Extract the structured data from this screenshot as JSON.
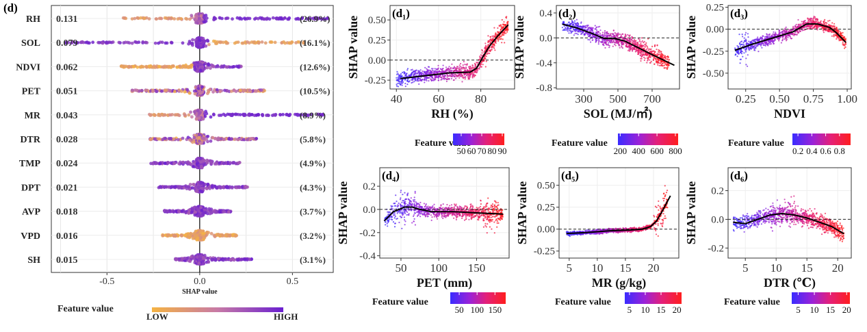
{
  "chart_data": [
    {
      "type": "scatter",
      "subtype": "shap-summary-beeswarm",
      "panel_label": "(d)",
      "xlabel": "SHAP value",
      "xlim": [
        -0.8,
        0.72
      ],
      "xticks": [
        -0.5,
        0.0,
        0.5
      ],
      "xtick_labels": [
        "-0.5",
        "0.0",
        "0.5"
      ],
      "features": [
        {
          "name": "RH",
          "mean_abs_shap": "0.131",
          "share": "(26.9%)",
          "min": -0.43,
          "max": 0.7,
          "color": "high-right"
        },
        {
          "name": "SOL",
          "mean_abs_shap": "0.079",
          "share": "(16.1%)",
          "min": -0.73,
          "max": 0.57,
          "color": "low-right"
        },
        {
          "name": "NDVI",
          "mean_abs_shap": "0.062",
          "share": "(12.6%)",
          "min": -0.43,
          "max": 0.23,
          "color": "low-left"
        },
        {
          "name": "PET",
          "mean_abs_shap": "0.051",
          "share": "(10.5%)",
          "min": -0.37,
          "max": 0.35,
          "color": "mixed"
        },
        {
          "name": "MR",
          "mean_abs_shap": "0.043",
          "share": "(8.9%)",
          "min": -0.31,
          "max": 0.67,
          "color": "high-right"
        },
        {
          "name": "DTR",
          "mean_abs_shap": "0.028",
          "share": "(5.8%)",
          "min": -0.27,
          "max": 0.31,
          "color": "mixed"
        },
        {
          "name": "TMP",
          "mean_abs_shap": "0.024",
          "share": "(4.9%)",
          "min": -0.27,
          "max": 0.22,
          "color": "mostly-high"
        },
        {
          "name": "DPT",
          "mean_abs_shap": "0.021",
          "share": "(4.3%)",
          "min": -0.23,
          "max": 0.26,
          "color": "mostly-high"
        },
        {
          "name": "AVP",
          "mean_abs_shap": "0.018",
          "share": "(3.7%)",
          "min": -0.19,
          "max": 0.17,
          "color": "mostly-high"
        },
        {
          "name": "VPD",
          "mean_abs_shap": "0.016",
          "share": "(3.2%)",
          "min": -0.2,
          "max": 0.2,
          "color": "mostly-low"
        },
        {
          "name": "SH",
          "mean_abs_shap": "0.015",
          "share": "(3.1%)",
          "min": -0.14,
          "max": 0.28,
          "color": "mostly-high"
        }
      ],
      "legend": {
        "title": "Feature value",
        "low": "LOW",
        "high": "HIGH",
        "colors": [
          "#f5b342",
          "#c77aa6",
          "#6a1fd0"
        ]
      }
    },
    {
      "type": "scatter",
      "panel_label": "(d₁)",
      "xlabel": "RH (%)",
      "ylabel": "SHAP value",
      "xlim": [
        37,
        96
      ],
      "ylim": [
        -0.36,
        0.68
      ],
      "xticks": [
        40,
        60,
        80
      ],
      "yticks": [
        -0.25,
        0,
        0.25,
        0.5
      ],
      "ytick_labels": [
        "-0.25",
        "0.00",
        "0.25",
        "0.50"
      ],
      "ref_line": 0,
      "trend": [
        [
          42,
          -0.23
        ],
        [
          55,
          -0.19
        ],
        [
          65,
          -0.16
        ],
        [
          75,
          -0.15
        ],
        [
          78,
          -0.1
        ],
        [
          81,
          0.04
        ],
        [
          84,
          0.17
        ],
        [
          88,
          0.3
        ],
        [
          93,
          0.44
        ]
      ],
      "scatter": {
        "xmin": 40,
        "xmax": 93,
        "spread": 0.09,
        "extra": [
          [
            80,
            93,
            0.14
          ]
        ]
      },
      "legend": {
        "title": "Feature value",
        "ticks": [
          "50",
          "60",
          "70",
          "80",
          "90"
        ],
        "domain": [
          42,
          92
        ],
        "tickvals": [
          50,
          60,
          70,
          80,
          90
        ]
      }
    },
    {
      "type": "scatter",
      "panel_label": "(d₂)",
      "xlabel": "SOL (MJ/㎡)",
      "ylabel": "SHAP value",
      "xlim": [
        140,
        860
      ],
      "ylim": [
        -0.82,
        0.52
      ],
      "xticks": [
        300,
        500,
        700
      ],
      "yticks": [
        -0.8,
        -0.4,
        0,
        0.4
      ],
      "ytick_labels": [
        "-0.8",
        "-0.4",
        "0.0",
        "0.4"
      ],
      "ref_line": 0,
      "trend": [
        [
          175,
          0.22
        ],
        [
          260,
          0.16
        ],
        [
          350,
          0.07
        ],
        [
          420,
          -0.01
        ],
        [
          480,
          -0.01
        ],
        [
          540,
          -0.05
        ],
        [
          620,
          -0.16
        ],
        [
          700,
          -0.27
        ],
        [
          830,
          -0.44
        ]
      ],
      "scatter": {
        "xmin": 175,
        "xmax": 800,
        "spread": 0.12,
        "extra": [
          [
            620,
            740,
            0.18
          ]
        ]
      },
      "legend": {
        "title": "Feature value",
        "ticks": [
          "200",
          "400",
          "600",
          "800"
        ],
        "domain": [
          175,
          830
        ],
        "tickvals": [
          200,
          400,
          600,
          800
        ]
      }
    },
    {
      "type": "scatter",
      "panel_label": "(d₃)",
      "xlabel": "NDVI",
      "ylabel": "SHAP value",
      "xlim": [
        0.12,
        1.03
      ],
      "ylim": [
        -0.68,
        0.27
      ],
      "xticks": [
        0.25,
        0.5,
        0.75,
        1.0
      ],
      "xtick_labels": [
        "0.25",
        "0.50",
        "0.75",
        "1.00"
      ],
      "yticks": [
        -0.5,
        -0.25,
        0,
        0.25
      ],
      "ytick_labels": [
        "-0.50",
        "-0.25",
        "0.00",
        "0.25"
      ],
      "ref_line": 0,
      "trend": [
        [
          0.17,
          -0.24
        ],
        [
          0.3,
          -0.17
        ],
        [
          0.45,
          -0.1
        ],
        [
          0.6,
          -0.03
        ],
        [
          0.7,
          0.06
        ],
        [
          0.78,
          0.06
        ],
        [
          0.87,
          0.02
        ],
        [
          0.92,
          -0.04
        ],
        [
          0.99,
          -0.15
        ]
      ],
      "scatter": {
        "xmin": 0.17,
        "xmax": 0.99,
        "spread": 0.07,
        "extra": [
          [
            0.2,
            0.27,
            0.22
          ]
        ]
      },
      "legend": {
        "title": "Feature value",
        "ticks": [
          "0.2",
          "0.4",
          "0.6",
          "0.8"
        ],
        "domain": [
          0.12,
          0.96
        ],
        "tickvals": [
          0.2,
          0.4,
          0.6,
          0.8
        ]
      }
    },
    {
      "type": "scatter",
      "panel_label": "(d₄)",
      "xlabel": "PET (mm)",
      "ylabel": "SHAP value",
      "xlim": [
        22,
        193
      ],
      "ylim": [
        -0.42,
        0.36
      ],
      "xticks": [
        50,
        100,
        150
      ],
      "yticks": [
        -0.4,
        -0.2,
        0,
        0.2
      ],
      "ytick_labels": [
        "-0.4",
        "-0.2",
        "0.0",
        "0.2"
      ],
      "ref_line": 0,
      "trend": [
        [
          28,
          -0.1
        ],
        [
          40,
          -0.02
        ],
        [
          55,
          0.02
        ],
        [
          65,
          0.02
        ],
        [
          75,
          0.0
        ],
        [
          90,
          -0.02
        ],
        [
          120,
          -0.02
        ],
        [
          150,
          -0.03
        ],
        [
          185,
          -0.04
        ]
      ],
      "scatter": {
        "xmin": 28,
        "xmax": 185,
        "spread": 0.06,
        "extra": [
          [
            40,
            70,
            0.16
          ],
          [
            155,
            180,
            0.13
          ]
        ]
      },
      "legend": {
        "title": "Feature value",
        "ticks": [
          "50",
          "100",
          "150"
        ],
        "domain": [
          25,
          180
        ],
        "tickvals": [
          50,
          100,
          150
        ]
      }
    },
    {
      "type": "scatter",
      "panel_label": "(d₅)",
      "xlabel": "MR (g/kg)",
      "ylabel": "SHAP value",
      "xlim": [
        3.2,
        24.5
      ],
      "ylim": [
        -0.33,
        0.7
      ],
      "xticks": [
        5,
        10,
        15,
        20
      ],
      "yticks": [
        -0.25,
        0,
        0.25,
        0.5
      ],
      "ytick_labels": [
        "-0.25",
        "0.00",
        "0.25",
        "0.50"
      ],
      "ref_line": 0,
      "trend": [
        [
          4.5,
          -0.05
        ],
        [
          8,
          -0.04
        ],
        [
          12,
          -0.02
        ],
        [
          16,
          -0.01
        ],
        [
          18,
          0.0
        ],
        [
          19.5,
          0.03
        ],
        [
          20.5,
          0.09
        ],
        [
          21.5,
          0.2
        ],
        [
          23,
          0.38
        ]
      ],
      "scatter": {
        "xmin": 4.5,
        "xmax": 22.5,
        "spread": 0.025,
        "extra": [
          [
            20,
            22.5,
            0.18
          ]
        ]
      },
      "legend": {
        "title": "Feature value",
        "ticks": [
          "5",
          "10",
          "15",
          "20"
        ],
        "domain": [
          3.5,
          21.5
        ],
        "tickvals": [
          5,
          10,
          15,
          20
        ]
      }
    },
    {
      "type": "scatter",
      "panel_label": "(d₆)",
      "xlabel": "DTR (℃)",
      "ylabel": "SHAP value",
      "xlim": [
        2.2,
        22.2
      ],
      "ylim": [
        -0.27,
        0.36
      ],
      "xticks": [
        5,
        10,
        15,
        20
      ],
      "yticks": [
        -0.2,
        0,
        0.2
      ],
      "ytick_labels": [
        "-0.2",
        "0.0",
        "0.2"
      ],
      "ref_line": 0,
      "trend": [
        [
          3,
          -0.02
        ],
        [
          5,
          -0.03
        ],
        [
          7,
          0.0
        ],
        [
          9,
          0.03
        ],
        [
          11,
          0.04
        ],
        [
          13,
          0.03
        ],
        [
          15,
          0.01
        ],
        [
          17,
          -0.02
        ],
        [
          19,
          -0.05
        ],
        [
          21,
          -0.1
        ]
      ],
      "scatter": {
        "xmin": 3,
        "xmax": 21,
        "spread": 0.06,
        "extra": [
          [
            9,
            13,
            0.1
          ]
        ]
      },
      "legend": {
        "title": "Feature value",
        "ticks": [
          "5",
          "10",
          "15",
          "20"
        ],
        "domain": [
          3,
          21
        ],
        "tickvals": [
          5,
          10,
          15,
          20
        ]
      }
    }
  ]
}
